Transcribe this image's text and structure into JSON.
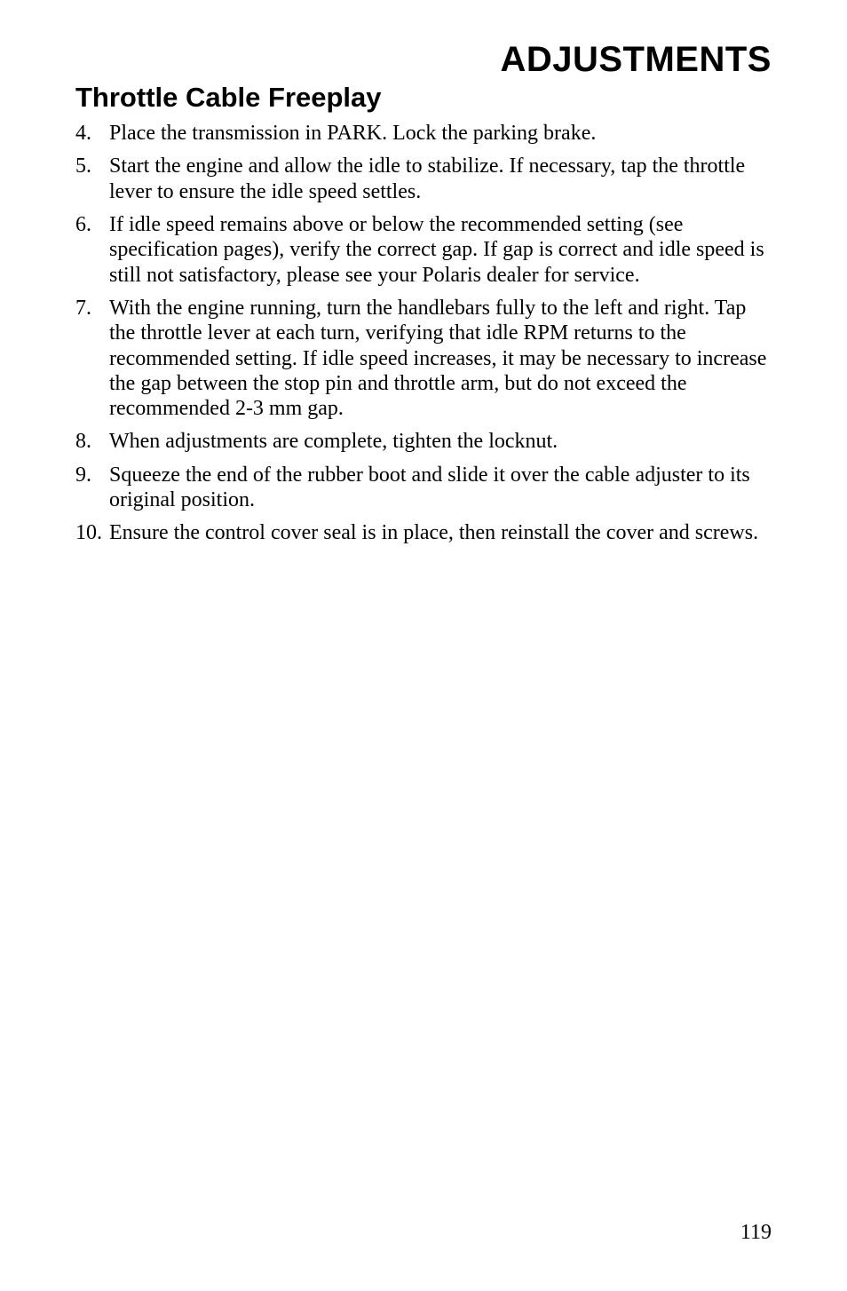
{
  "page": {
    "main_title": "ADJUSTMENTS",
    "sub_title": "Throttle Cable Freeplay",
    "page_number": "119"
  },
  "steps": [
    {
      "num": "4.",
      "text": "Place the transmission in PARK. Lock the parking brake."
    },
    {
      "num": "5.",
      "text": "Start the engine and allow the idle to stabilize. If necessary, tap the throttle lever to ensure the idle speed settles."
    },
    {
      "num": "6.",
      "text": "If idle speed remains above or below the recommended setting (see specification pages), verify the correct gap. If gap is correct and idle speed is still not satisfactory, please see your Polaris dealer for service."
    },
    {
      "num": "7.",
      "text": "With the engine running, turn the handlebars fully to the left and right. Tap the throttle lever at each turn, verifying that idle RPM returns to the recommended setting. If idle speed increases, it may be necessary to increase the gap between the stop pin and throttle arm, but do not exceed the recommended 2-3 mm gap."
    },
    {
      "num": "8.",
      "text": "When adjustments are complete, tighten the locknut."
    },
    {
      "num": "9.",
      "text": "Squeeze the end of the rubber boot and slide it over the cable adjuster to its original position."
    },
    {
      "num": "10.",
      "text": "Ensure the control cover seal is in place, then reinstall the cover and screws."
    }
  ]
}
